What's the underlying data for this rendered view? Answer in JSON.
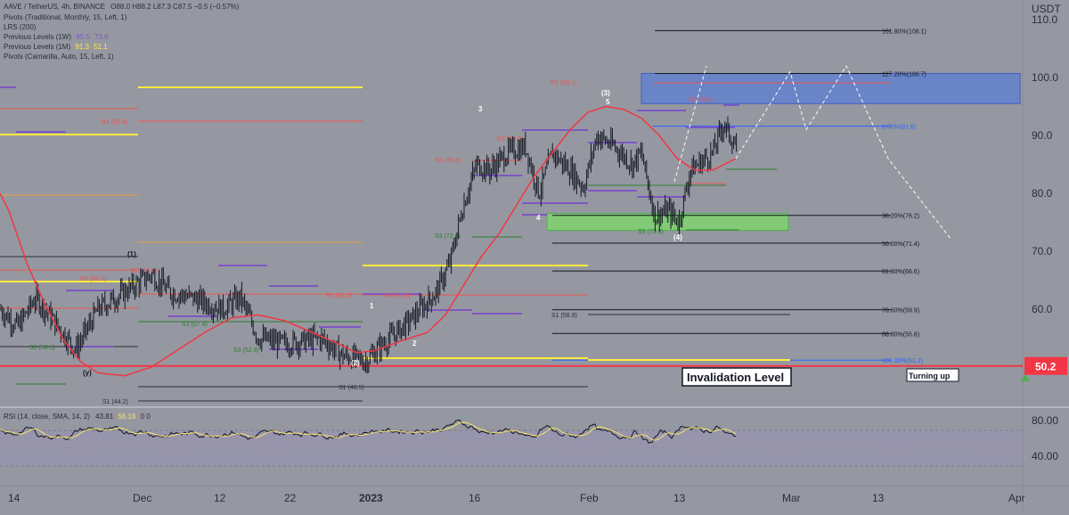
{
  "header": {
    "symbol_line": "AAVE / TetherUS, 4h, BINANCE",
    "ohlc": "O88.0 H88.2 L87.3 C87.5 −0.5 (−0.57%)",
    "indicators": [
      {
        "label": "Pivots (Traditional, Monthly, 15, Left, 1)",
        "values": []
      },
      {
        "label": "LRS (200)",
        "values": []
      },
      {
        "label": "Previous Levels (1W)",
        "values": [
          "95.5",
          "73.6"
        ]
      },
      {
        "label": "Previous Levels (1M)",
        "values": [
          "91.3",
          "51.1"
        ]
      },
      {
        "label": "Pivots (Camarilla, Auto, 15, Left, 1)",
        "values": []
      }
    ]
  },
  "price_axis": {
    "currency": "USDT",
    "ticks": [
      "110.0",
      "100.0",
      "90.0",
      "80.0",
      "70.0",
      "60.0",
      "50.0"
    ],
    "current_badge": "50.2",
    "current_badge_color": "#f23645"
  },
  "rsi": {
    "label": "RSI (14, close, SMA, 14, 2)",
    "value_rsi": "43.81",
    "value_sma": "56.16",
    "extra": "0  0",
    "ticks": [
      "80.00",
      "40.00"
    ]
  },
  "time_axis": {
    "ticks": [
      "14",
      "Dec",
      "12",
      "22",
      "2023",
      "16",
      "Feb",
      "13",
      "Mar",
      "13",
      "Apr"
    ]
  },
  "annotations": {
    "invalidation": "Invalidation Level",
    "turning_up": "Turning up",
    "wave_labels": [
      "(1)",
      "1",
      "2",
      "3",
      "4",
      "(2)",
      "(3)",
      "5",
      "(4)",
      "(y)"
    ]
  },
  "chart_data": {
    "type": "line",
    "title": "AAVE / TetherUS, 4h, BINANCE",
    "x_range": [
      "2022-11-14",
      "2023-04-01"
    ],
    "ylim": [
      40,
      112
    ],
    "fibonacci_levels": [
      {
        "label": "161.80%(108.1)",
        "value": 108.1
      },
      {
        "label": "127.20%(100.7)",
        "value": 100.7
      },
      {
        "label": "0.00%(91.6)",
        "value": 91.6
      },
      {
        "label": "38.20%(76.2)",
        "value": 76.2
      },
      {
        "label": "50.00%(71.4)",
        "value": 71.4
      },
      {
        "label": "61.80%(66.6)",
        "value": 66.6
      },
      {
        "label": "78.60%(59.9)",
        "value": 59.9
      },
      {
        "label": "88.80%(55.8)",
        "value": 55.8
      },
      {
        "label": "100.00%(51.2)",
        "value": 51.2
      }
    ],
    "pivot_labels": [
      {
        "label": "R1 (92.4)",
        "value": 92.4,
        "color": "#ef5350"
      },
      {
        "label": "R3 (85.8)",
        "value": 85.8,
        "color": "#ef5350"
      },
      {
        "label": "R1 (99.1)",
        "value": 99.1,
        "color": "#ef5350"
      },
      {
        "label": "R1 (96.1)",
        "value": 96.1,
        "color": "#ef5350"
      },
      {
        "label": "R3 (65.1)",
        "value": 65.1,
        "color": "#ef5350"
      },
      {
        "label": "R3 (66.6)",
        "value": 66.6,
        "color": "#ef5350"
      },
      {
        "label": "R1 (62.4)",
        "value": 62.4,
        "color": "#ef5350"
      },
      {
        "label": "R3 (61.6)",
        "value": 61.6,
        "color": "#ef5350"
      },
      {
        "label": "R3 (89.9)",
        "value": 89.9,
        "color": "#ef5350"
      },
      {
        "label": "S3 (53.5)",
        "value": 53.5,
        "color": "#2e7d32"
      },
      {
        "label": "S3 (57.4)",
        "value": 57.4,
        "color": "#2e7d32"
      },
      {
        "label": "S3 (52.8)",
        "value": 52.8,
        "color": "#2e7d32"
      },
      {
        "label": "S3 (72.6)",
        "value": 72.6,
        "color": "#2e7d32"
      },
      {
        "label": "S5 (73.3)",
        "value": 73.3,
        "color": "#2e7d32"
      },
      {
        "label": "S1 (58.9)",
        "value": 58.9,
        "color": "#2a2e39"
      },
      {
        "label": "S1 (46.5)",
        "value": 46.5,
        "color": "#2a2e39"
      },
      {
        "label": "S1 (44.2)",
        "value": 44.2,
        "color": "#2a2e39"
      }
    ],
    "invalidation_level": 50.2,
    "target_zone": [
      95.5,
      100.7
    ],
    "support_zone": [
      73.6,
      76.5
    ]
  }
}
